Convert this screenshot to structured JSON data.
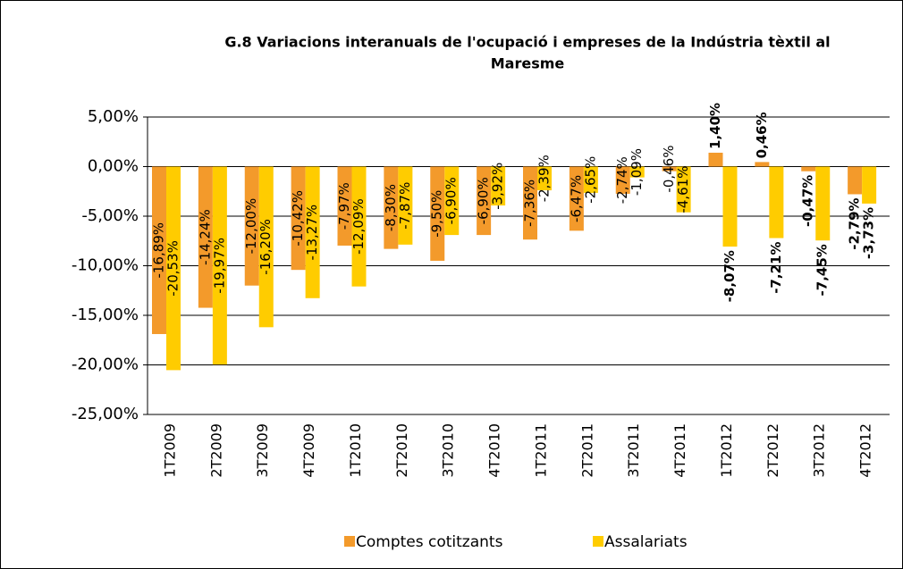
{
  "chart_data": {
    "type": "bar",
    "title": [
      "G.8 Variacions interanuals de l'ocupació i empreses de la Indústria tèxtil al",
      "Maresme"
    ],
    "categories": [
      "1T2009",
      "2T2009",
      "3T2009",
      "4T2009",
      "1T2010",
      "2T2010",
      "3T2010",
      "4T2010",
      "1T2011",
      "2T2011",
      "3T2011",
      "4T2011",
      "1T2012",
      "2T2012",
      "3T2012",
      "4T2012"
    ],
    "series": [
      {
        "name": "Comptes cotitzants",
        "color": "#f39a2b",
        "values": [
          -16.89,
          -14.24,
          -12.0,
          -10.42,
          -7.97,
          -8.3,
          -9.5,
          -6.9,
          -7.36,
          -6.47,
          -2.74,
          -0.46,
          1.4,
          0.46,
          -0.47,
          -2.79
        ],
        "value_labels": [
          "-16,89%",
          "-14,24%",
          "-12,00%",
          "-10,42%",
          "-7,97%",
          "-8,30%",
          "-9,50%",
          "-6,90%",
          "-7,36%",
          "-6,47%",
          "-2,74%",
          "-0,46%",
          "1,40%",
          "0,46%",
          "-0,47%",
          "-2,79%"
        ]
      },
      {
        "name": "Assalariats",
        "color": "#ffcc00",
        "values": [
          -20.53,
          -19.97,
          -16.2,
          -13.27,
          -12.09,
          -7.87,
          -6.9,
          -3.92,
          -2.39,
          -2.65,
          -1.09,
          -4.61,
          -8.07,
          -7.21,
          -7.45,
          -3.73
        ],
        "value_labels": [
          "-20,53%",
          "-19,97%",
          "-16,20%",
          "-13,27%",
          "-12,09%",
          "-7,87%",
          "-6,90%",
          "-3,92%",
          "-2,39%",
          "-2,65%",
          "-1,09%",
          "-4,61%",
          "-8,07%",
          "-7,21%",
          "-7,45%",
          "-3,73%"
        ]
      }
    ],
    "ylim": [
      -25,
      5
    ],
    "yticks": [
      {
        "value": 5,
        "label": "5,00%"
      },
      {
        "value": 0,
        "label": "0,00%"
      },
      {
        "value": -5,
        "label": "-5,00%"
      },
      {
        "value": -10,
        "label": "-10,00%"
      },
      {
        "value": -15,
        "label": "-15,00%"
      },
      {
        "value": -20,
        "label": "-20,00%"
      },
      {
        "value": -25,
        "label": "-25,00%"
      }
    ],
    "grid": true
  }
}
